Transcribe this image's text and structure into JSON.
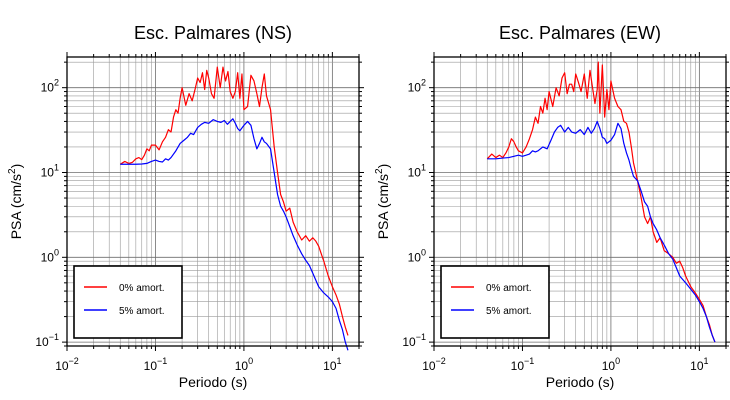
{
  "chart_data": [
    {
      "type": "line",
      "title": "Esc. Palmares (NS)",
      "xlabel": "Periodo (s)",
      "ylabel_main": "PSA (cm/s",
      "ylabel_sup": "2",
      "ylabel_tail": ")",
      "xscale": "log",
      "yscale": "log",
      "xlim": [
        0.01,
        20
      ],
      "ylim": [
        0.09,
        230
      ],
      "grid": true,
      "legend_position": "bottom-left",
      "x_ticks": [
        {
          "value": 0.01,
          "base": "10",
          "exp": "−2"
        },
        {
          "value": 0.1,
          "base": "10",
          "exp": "−1"
        },
        {
          "value": 1,
          "base": "10",
          "exp": "0"
        },
        {
          "value": 10,
          "base": "10",
          "exp": "1"
        }
      ],
      "y_ticks": [
        {
          "value": 0.1,
          "base": "10",
          "exp": "−1"
        },
        {
          "value": 1,
          "base": "10",
          "exp": "0"
        },
        {
          "value": 10,
          "base": "10",
          "exp": "1"
        },
        {
          "value": 100,
          "base": "10",
          "exp": "2"
        }
      ],
      "series": [
        {
          "name": "0% amort.",
          "color": "#ff0000",
          "x": [
            0.04,
            0.045,
            0.05,
            0.055,
            0.06,
            0.065,
            0.07,
            0.075,
            0.08,
            0.085,
            0.09,
            0.1,
            0.11,
            0.12,
            0.13,
            0.14,
            0.15,
            0.16,
            0.17,
            0.18,
            0.19,
            0.2,
            0.22,
            0.24,
            0.26,
            0.28,
            0.3,
            0.32,
            0.34,
            0.36,
            0.38,
            0.4,
            0.43,
            0.46,
            0.5,
            0.54,
            0.58,
            0.62,
            0.66,
            0.7,
            0.75,
            0.8,
            0.85,
            0.9,
            0.95,
            1.0,
            1.1,
            1.2,
            1.3,
            1.4,
            1.5,
            1.6,
            1.7,
            1.8,
            2.0,
            2.2,
            2.4,
            2.6,
            2.8,
            3.0,
            3.3,
            3.6,
            4.0,
            4.5,
            5.0,
            5.5,
            6.0,
            6.5,
            7.0,
            8.0,
            9.0,
            10.0,
            11.0,
            12.0,
            13.0,
            14.0,
            15.0
          ],
          "y": [
            12.5,
            13.5,
            12.8,
            13.2,
            14.5,
            15.0,
            14.2,
            16.0,
            19.0,
            18.0,
            21.0,
            21.0,
            18.5,
            23.0,
            26.0,
            32.0,
            30.0,
            45.0,
            55.0,
            50.0,
            75.0,
            100.0,
            62.0,
            85.0,
            70.0,
            95.0,
            130.0,
            115.0,
            150.0,
            95.0,
            160.0,
            130.0,
            85.0,
            75.0,
            175.0,
            100.0,
            175.0,
            120.0,
            155.0,
            90.0,
            75.0,
            90.0,
            150.0,
            75.0,
            145.0,
            55.0,
            60.0,
            140.0,
            120.0,
            85.0,
            60.0,
            100.0,
            145.0,
            80.0,
            55.0,
            20.0,
            10.0,
            5.5,
            4.5,
            3.5,
            3.8,
            2.6,
            2.0,
            1.6,
            1.8,
            1.55,
            1.7,
            1.55,
            1.35,
            0.9,
            0.6,
            0.45,
            0.36,
            0.28,
            0.2,
            0.15,
            0.12
          ]
        },
        {
          "name": "5% amort.",
          "color": "#0000ff",
          "x": [
            0.04,
            0.05,
            0.06,
            0.07,
            0.08,
            0.09,
            0.1,
            0.11,
            0.12,
            0.13,
            0.14,
            0.15,
            0.17,
            0.19,
            0.21,
            0.23,
            0.25,
            0.27,
            0.3,
            0.33,
            0.36,
            0.4,
            0.45,
            0.5,
            0.55,
            0.6,
            0.65,
            0.7,
            0.75,
            0.8,
            0.85,
            0.9,
            1.0,
            1.1,
            1.2,
            1.3,
            1.4,
            1.5,
            1.6,
            1.7,
            1.8,
            2.0,
            2.2,
            2.4,
            2.6,
            2.8,
            3.0,
            3.3,
            3.6,
            4.0,
            4.5,
            5.0,
            5.5,
            6.0,
            7.0,
            8.0,
            9.0,
            10.0,
            11.0,
            12.0,
            13.0,
            14.0,
            15.0
          ],
          "y": [
            12.5,
            12.5,
            12.5,
            12.6,
            12.8,
            13.5,
            14.0,
            13.5,
            13.3,
            14.5,
            14.0,
            15.0,
            18.0,
            22.0,
            24.0,
            26.0,
            29.0,
            28.0,
            34.0,
            37.0,
            39.0,
            38.0,
            42.0,
            40.0,
            39.0,
            41.0,
            37.0,
            40.0,
            43.0,
            38.0,
            33.0,
            31.0,
            36.0,
            40.0,
            36.0,
            25.0,
            19.0,
            22.0,
            26.0,
            23.0,
            22.0,
            19.0,
            10.0,
            5.5,
            4.0,
            3.5,
            3.0,
            2.3,
            1.8,
            1.4,
            1.1,
            0.92,
            0.8,
            0.65,
            0.45,
            0.38,
            0.34,
            0.3,
            0.25,
            0.18,
            0.14,
            0.1,
            0.08
          ]
        }
      ]
    },
    {
      "type": "line",
      "title": "Esc. Palmares (EW)",
      "xlabel": "Periodo (s)",
      "ylabel_main": "PSA (cm/s",
      "ylabel_sup": "2",
      "ylabel_tail": ")",
      "xscale": "log",
      "yscale": "log",
      "xlim": [
        0.01,
        20
      ],
      "ylim": [
        0.09,
        230
      ],
      "grid": true,
      "legend_position": "bottom-left",
      "x_ticks": [
        {
          "value": 0.01,
          "base": "10",
          "exp": "−2"
        },
        {
          "value": 0.1,
          "base": "10",
          "exp": "−1"
        },
        {
          "value": 1,
          "base": "10",
          "exp": "0"
        },
        {
          "value": 10,
          "base": "10",
          "exp": "1"
        }
      ],
      "y_ticks": [
        {
          "value": 0.1,
          "base": "10",
          "exp": "−1"
        },
        {
          "value": 1,
          "base": "10",
          "exp": "0"
        },
        {
          "value": 10,
          "base": "10",
          "exp": "1"
        },
        {
          "value": 100,
          "base": "10",
          "exp": "2"
        }
      ],
      "series": [
        {
          "name": "0% amort.",
          "color": "#ff0000",
          "x": [
            0.04,
            0.045,
            0.05,
            0.055,
            0.06,
            0.065,
            0.07,
            0.075,
            0.08,
            0.085,
            0.09,
            0.1,
            0.11,
            0.12,
            0.13,
            0.14,
            0.15,
            0.16,
            0.17,
            0.18,
            0.19,
            0.2,
            0.22,
            0.24,
            0.26,
            0.28,
            0.3,
            0.32,
            0.34,
            0.36,
            0.38,
            0.4,
            0.43,
            0.46,
            0.5,
            0.54,
            0.58,
            0.62,
            0.66,
            0.7,
            0.72,
            0.75,
            0.8,
            0.85,
            0.9,
            0.95,
            1.0,
            1.1,
            1.2,
            1.3,
            1.4,
            1.5,
            1.6,
            1.7,
            1.8,
            2.0,
            2.2,
            2.4,
            2.6,
            2.8,
            3.0,
            3.3,
            3.6,
            4.0,
            4.5,
            5.0,
            5.5,
            6.0,
            6.5,
            7.0,
            8.0,
            9.0,
            10.0,
            11.0,
            12.0,
            13.0,
            14.0,
            15.0
          ],
          "y": [
            14.5,
            16.5,
            15.0,
            16.0,
            15.0,
            17.0,
            20.0,
            25.0,
            23.0,
            20.0,
            18.0,
            17.0,
            20.0,
            25.0,
            32.0,
            45.0,
            38.0,
            60.0,
            50.0,
            75.0,
            55.0,
            90.0,
            60.0,
            100.0,
            80.0,
            130.0,
            150.0,
            85.0,
            110.0,
            110.0,
            90.0,
            145.0,
            115.0,
            90.0,
            145.0,
            75.0,
            160.0,
            100.0,
            65.0,
            95.0,
            200.0,
            50.0,
            185.0,
            45.0,
            95.0,
            55.0,
            120.0,
            75.0,
            60.0,
            55.0,
            40.0,
            38.0,
            30.0,
            20.0,
            13.0,
            8.0,
            5.0,
            3.0,
            2.5,
            3.0,
            2.0,
            1.5,
            1.7,
            1.2,
            1.1,
            1.0,
            0.85,
            0.9,
            0.75,
            0.6,
            0.45,
            0.38,
            0.32,
            0.27,
            0.2,
            0.16,
            0.12,
            0.1
          ]
        },
        {
          "name": "5% amort.",
          "color": "#0000ff",
          "x": [
            0.04,
            0.05,
            0.06,
            0.07,
            0.08,
            0.09,
            0.1,
            0.11,
            0.12,
            0.13,
            0.14,
            0.15,
            0.17,
            0.19,
            0.21,
            0.23,
            0.25,
            0.27,
            0.3,
            0.33,
            0.36,
            0.4,
            0.45,
            0.5,
            0.55,
            0.6,
            0.65,
            0.7,
            0.75,
            0.8,
            0.85,
            0.9,
            1.0,
            1.1,
            1.2,
            1.3,
            1.4,
            1.5,
            1.6,
            1.7,
            1.8,
            2.0,
            2.2,
            2.4,
            2.6,
            2.8,
            3.0,
            3.3,
            3.6,
            4.0,
            4.5,
            5.0,
            5.5,
            6.0,
            7.0,
            8.0,
            9.0,
            10.0,
            11.0,
            12.0,
            13.0,
            14.0,
            15.0
          ],
          "y": [
            14.5,
            14.5,
            14.8,
            15.0,
            15.5,
            16.0,
            15.5,
            16.0,
            16.5,
            18.0,
            17.5,
            18.0,
            20.0,
            19.0,
            24.0,
            30.0,
            34.0,
            36.0,
            30.0,
            34.0,
            30.0,
            29.0,
            32.0,
            28.0,
            34.0,
            29.0,
            33.0,
            40.0,
            33.0,
            26.0,
            25.0,
            22.0,
            24.0,
            28.0,
            38.0,
            33.0,
            22.0,
            17.0,
            14.0,
            11.0,
            9.0,
            8.0,
            6.0,
            4.5,
            4.0,
            3.0,
            2.5,
            2.1,
            1.7,
            1.4,
            1.1,
            0.95,
            0.75,
            0.6,
            0.5,
            0.42,
            0.36,
            0.3,
            0.25,
            0.2,
            0.15,
            0.12,
            0.1
          ]
        }
      ]
    }
  ]
}
